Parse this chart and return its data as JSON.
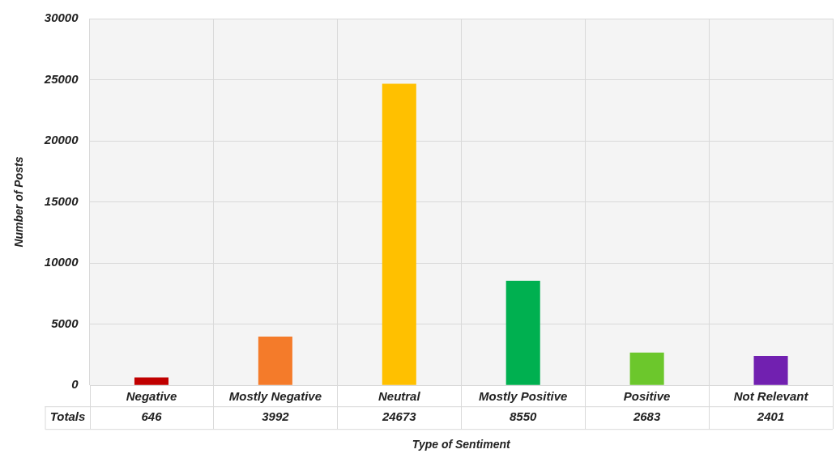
{
  "chart_data": {
    "type": "bar",
    "xlabel": "Type of Sentiment",
    "ylabel": "Number of Posts",
    "categories": [
      "Negative",
      "Mostly Negative",
      "Neutral",
      "Mostly Positive",
      "Positive",
      "Not Relevant"
    ],
    "values": [
      646,
      3992,
      24673,
      8550,
      2683,
      2401
    ],
    "colors": [
      "#c00000",
      "#f47b2a",
      "#ffc000",
      "#00b050",
      "#6cc72c",
      "#7120b0"
    ],
    "ylim": [
      0,
      30000
    ],
    "yticks": [
      0,
      5000,
      10000,
      15000,
      20000,
      25000,
      30000
    ],
    "grid": true,
    "legend": false,
    "data_labels": true,
    "annotations": [
      "Totals"
    ]
  }
}
